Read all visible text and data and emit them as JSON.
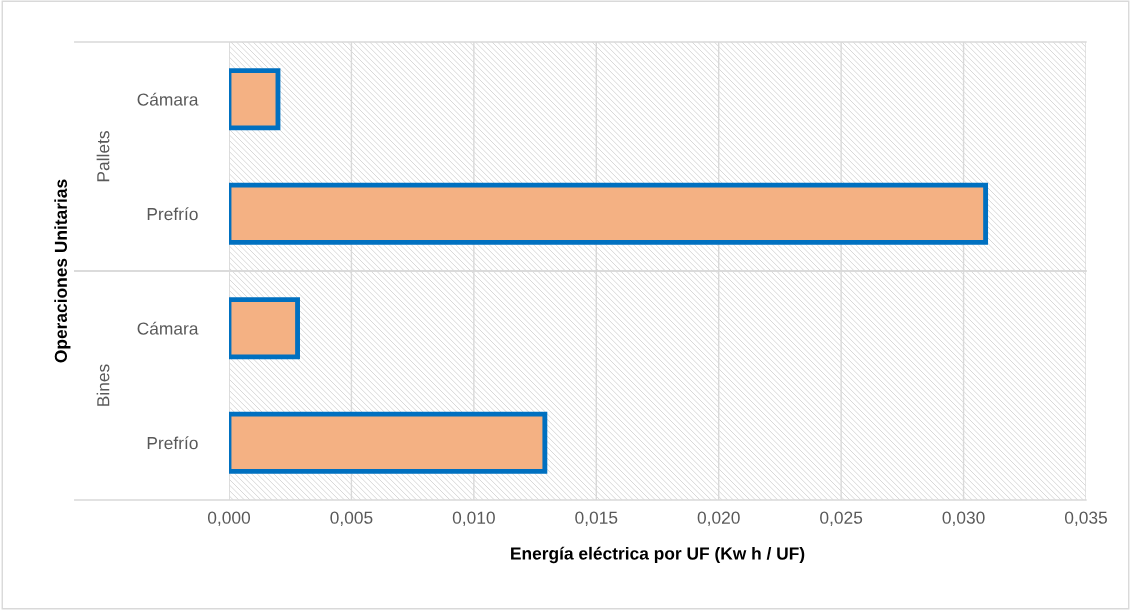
{
  "chart_data": {
    "type": "bar",
    "orientation": "horizontal",
    "categories": [
      "Cámara",
      "Prefrío",
      "Cámara",
      "Prefrío"
    ],
    "values": [
      0.002,
      0.0309,
      0.0028,
      0.0129
    ],
    "color": "#f4b183",
    "annotations": [
      "Pallets",
      "Bines"
    ],
    "xlabel": "Energía eléctrica por UF (Kw h / UF)",
    "ylabel": "Operaciones Unitarias",
    "xlim": [
      0,
      0.035
    ],
    "xticks": [
      {
        "value": 0,
        "label": "0,000"
      },
      {
        "value": 0.005,
        "label": "0,005"
      },
      {
        "value": 0.01,
        "label": "0,010"
      },
      {
        "value": 0.015,
        "label": "0,015"
      },
      {
        "value": 0.02,
        "label": "0,020"
      },
      {
        "value": 0.025,
        "label": "0,025"
      },
      {
        "value": 0.03,
        "label": "0,030"
      },
      {
        "value": 0.035,
        "label": "0,035"
      }
    ],
    "grid": "x"
  }
}
